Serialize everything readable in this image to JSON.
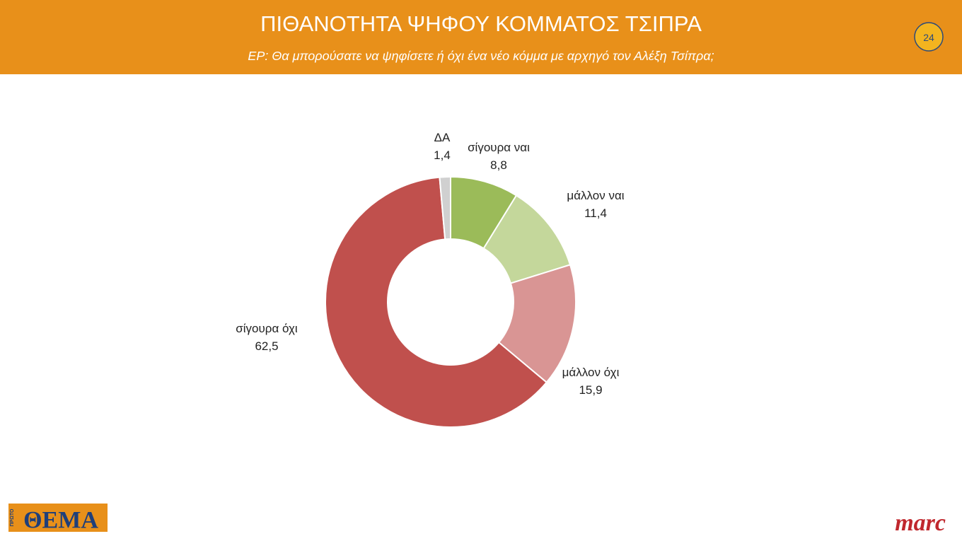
{
  "chart_data": {
    "type": "donut",
    "title": "ΠΙΘΑΝΟΤΗΤΑ ΨΗΦΟΥ ΚΟΜΜΑΤΟΣ ΤΣΙΠΡΑ",
    "subtitle": "ΕΡ: Θα μπορούσατε να ψηφίσετε ή όχι ένα νέο κόμμα με αρχηγό τον Αλέξη Τσίπρα;",
    "categories": [
      "σίγουρα ναι",
      "μάλλον ναι",
      "μάλλον όχι",
      "σίγουρα όχι",
      "ΔΑ"
    ],
    "values": [
      8.8,
      11.4,
      15.9,
      62.5,
      1.4
    ],
    "value_labels": [
      "8,8",
      "11,4",
      "15,9",
      "62,5",
      "1,4"
    ],
    "colors": [
      "#9bbb59",
      "#c4d79b",
      "#d99594",
      "#c0504d",
      "#d0d0d0"
    ]
  },
  "slide": {
    "page_number": "24",
    "logo_left_small": "ΠΡΩΤΟ",
    "logo_left": "ΘΕΜΑ",
    "logo_right": "marc"
  }
}
